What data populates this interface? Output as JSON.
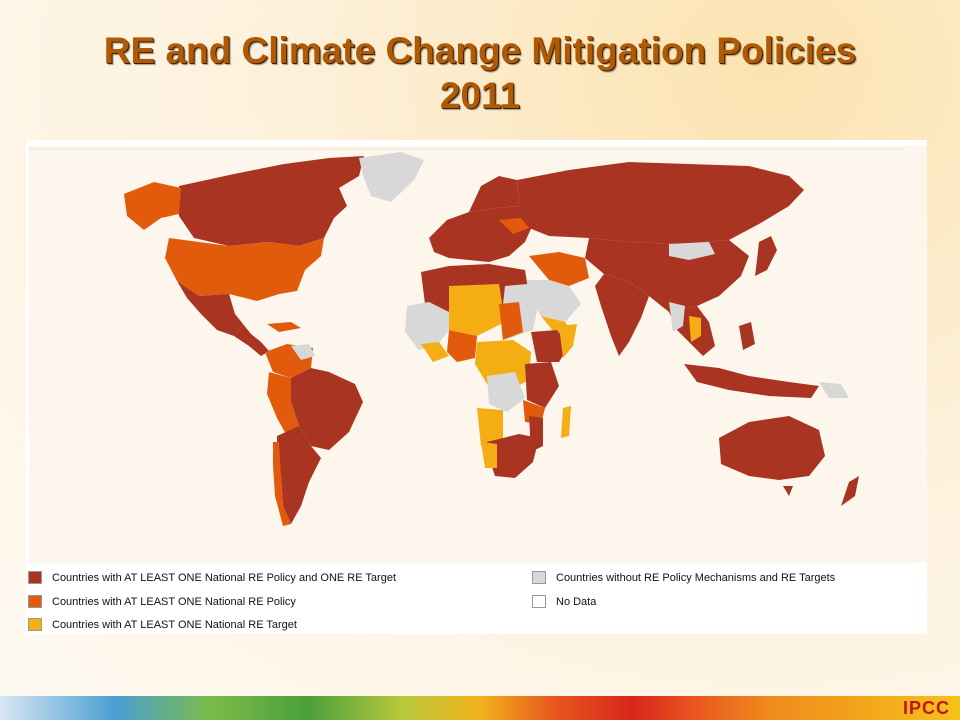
{
  "slide": {
    "title_line1": "RE and Climate Change Mitigation Policies",
    "title_line2": "2011",
    "footer_brand": "IPCC"
  },
  "map": {
    "colors": {
      "policy_and_target": "#a93422",
      "policy": "#e25a0c",
      "target": "#f5ad14",
      "none": "#d8d8d8",
      "no_data": "#ffffff",
      "ocean": "#fdf6ec"
    }
  },
  "legend": {
    "items": [
      {
        "label": "Countries with AT LEAST ONE National RE Policy and ONE RE Target",
        "color": "#a93422"
      },
      {
        "label": "Countries with AT LEAST ONE National RE Policy",
        "color": "#e25a0c"
      },
      {
        "label": "Countries with AT LEAST ONE National RE Target",
        "color": "#f5ad14"
      },
      {
        "label": "Countries without RE Policy Mechanisms and RE Targets",
        "color": "#d8d8d8"
      },
      {
        "label": "No Data",
        "color": "#ffffff"
      }
    ]
  }
}
